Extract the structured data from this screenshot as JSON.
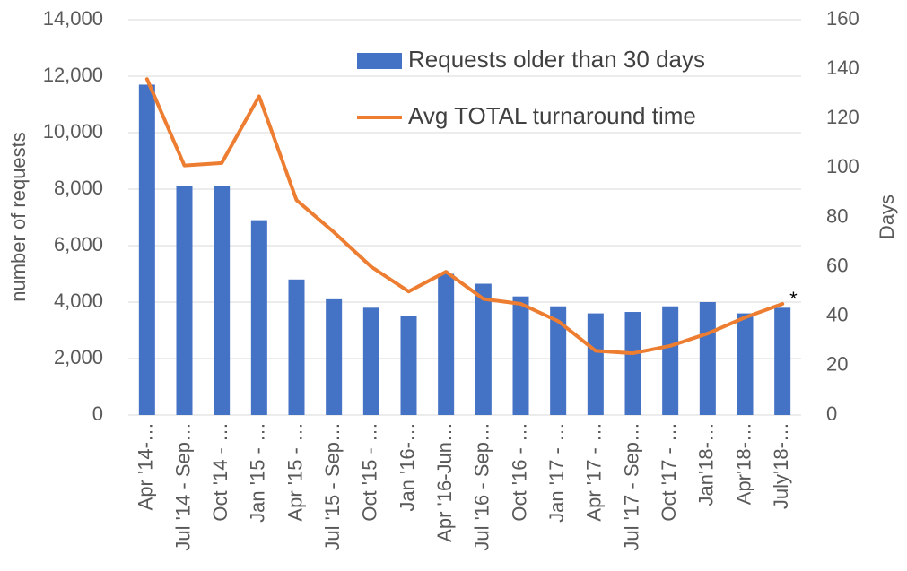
{
  "chart_data": {
    "type": "bar",
    "y_label": "number of requests",
    "y2_label": "Days",
    "annotation": "*",
    "categories": [
      "Apr '14-…",
      "Jul '14 - Sep…",
      "Oct '14 - …",
      "Jan '15 - …",
      "Apr '15 - …",
      "Jul '15 - Sep…",
      "Oct '15 - …",
      "Jan '16-…",
      "Apr '16-Jun…",
      "Jul '16 - Sep…",
      "Oct '16 - …",
      "Jan '17 - …",
      "Apr '17 - …",
      "Jul '17 - Sep…",
      "Oct '17 - …",
      "Jan'18-…",
      "Apr'18-…",
      "July'18-…"
    ],
    "series": [
      {
        "name": "Requests older than 30 days",
        "type": "bar",
        "color": "#4472c4",
        "axis": "y",
        "values": [
          11700,
          8100,
          8100,
          6900,
          4800,
          4100,
          3800,
          3500,
          5000,
          4650,
          4200,
          3850,
          3600,
          3650,
          3850,
          4000,
          3600,
          3800
        ]
      },
      {
        "name": "Avg TOTAL turnaround time",
        "type": "line",
        "color": "#ed7d31",
        "axis": "y2",
        "values": [
          136,
          101,
          102,
          129,
          87,
          74,
          60,
          50,
          58,
          47,
          45,
          38,
          26,
          25,
          28,
          33,
          39.5,
          45
        ]
      }
    ],
    "ylim": [
      0,
      14000
    ],
    "yticks": [
      0,
      {
        "value": 2000,
        "label": "2,000"
      },
      {
        "value": 4000,
        "label": "4,000"
      },
      {
        "value": 6000,
        "label": "6,000"
      },
      {
        "value": 8000,
        "label": "8,000"
      },
      {
        "value": 10000,
        "label": "10,000"
      },
      {
        "value": 12000,
        "label": "12,000"
      },
      {
        "value": 14000,
        "label": "14,000"
      }
    ],
    "y2lim": [
      0,
      160
    ],
    "y2ticks": [
      0,
      20,
      40,
      60,
      80,
      100,
      120,
      140,
      160
    ],
    "grid": true,
    "legend": "top-right"
  }
}
